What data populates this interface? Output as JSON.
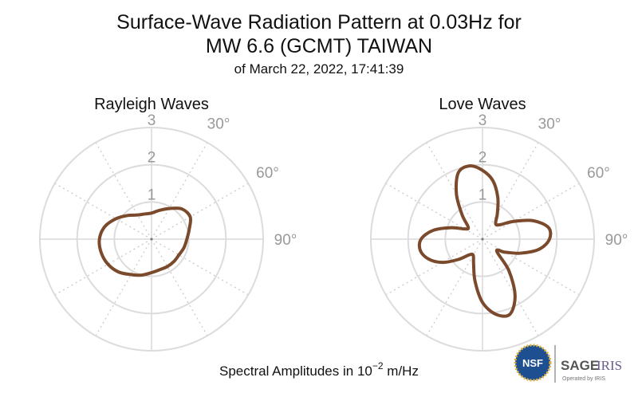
{
  "title": [
    "Surface-Wave Radiation Pattern at 0.03Hz for",
    "MW 6.6 (GCMT) TAIWAN"
  ],
  "subtitle": "of March 22, 2022, 17:41:39",
  "caption": {
    "text": "Spectral Amplitudes in",
    "base": "10",
    "exponent": "−2",
    "unit": "m/Hz"
  },
  "logos": {
    "nsf": "NSF",
    "sage": "SAGE",
    "iris": "IRIS",
    "operated": "Operated by IRIS"
  },
  "chart_data": [
    {
      "type": "polar",
      "title": "Rayleigh Waves",
      "color": "#7b4a2c",
      "theta": [
        0,
        15,
        30,
        45,
        60,
        75,
        90,
        105,
        120,
        135,
        150,
        165,
        180,
        195,
        210,
        225,
        240,
        255,
        270,
        285,
        300,
        315,
        330,
        345
      ],
      "values": [
        0.7,
        0.8,
        0.95,
        1.15,
        1.2,
        1.05,
        0.95,
        0.9,
        0.85,
        0.85,
        0.85,
        0.85,
        0.9,
        1.0,
        1.1,
        1.25,
        1.35,
        1.4,
        1.4,
        1.3,
        1.1,
        0.9,
        0.75,
        0.7
      ],
      "rlim": [
        0,
        3
      ],
      "rticks": [
        1,
        2,
        3
      ],
      "thetagrid": [
        0,
        30,
        60,
        90,
        120,
        150,
        180,
        210,
        240,
        270,
        300,
        330
      ],
      "thetaticks": [
        {
          "value": 30,
          "label": "30°"
        },
        {
          "value": 60,
          "label": "60°"
        },
        {
          "value": 90,
          "label": "90°"
        }
      ]
    },
    {
      "type": "polar",
      "title": "Love Waves",
      "color": "#7b4a2c",
      "theta": [
        0,
        10,
        20,
        30,
        40,
        50,
        60,
        70,
        80,
        90,
        100,
        110,
        120,
        130,
        140,
        150,
        160,
        170,
        180,
        190,
        200,
        210,
        220,
        230,
        240,
        250,
        260,
        270,
        280,
        290,
        300,
        310,
        320,
        330,
        340,
        350
      ],
      "values": [
        1.85,
        1.6,
        1.2,
        0.8,
        0.55,
        0.6,
        0.95,
        1.45,
        1.8,
        1.8,
        1.55,
        1.1,
        0.7,
        0.5,
        1.1,
        1.75,
        2.15,
        2.05,
        1.7,
        1.15,
        0.7,
        0.5,
        0.55,
        0.85,
        1.25,
        1.55,
        1.7,
        1.65,
        1.35,
        0.9,
        0.55,
        0.5,
        0.85,
        1.4,
        1.9,
        2.0
      ],
      "rlim": [
        0,
        3
      ],
      "rticks": [
        1,
        2,
        3
      ],
      "thetagrid": [
        0,
        30,
        60,
        90,
        120,
        150,
        180,
        210,
        240,
        270,
        300,
        330
      ],
      "thetaticks": [
        {
          "value": 30,
          "label": "30°"
        },
        {
          "value": 60,
          "label": "60°"
        },
        {
          "value": 90,
          "label": "90°"
        }
      ]
    }
  ]
}
